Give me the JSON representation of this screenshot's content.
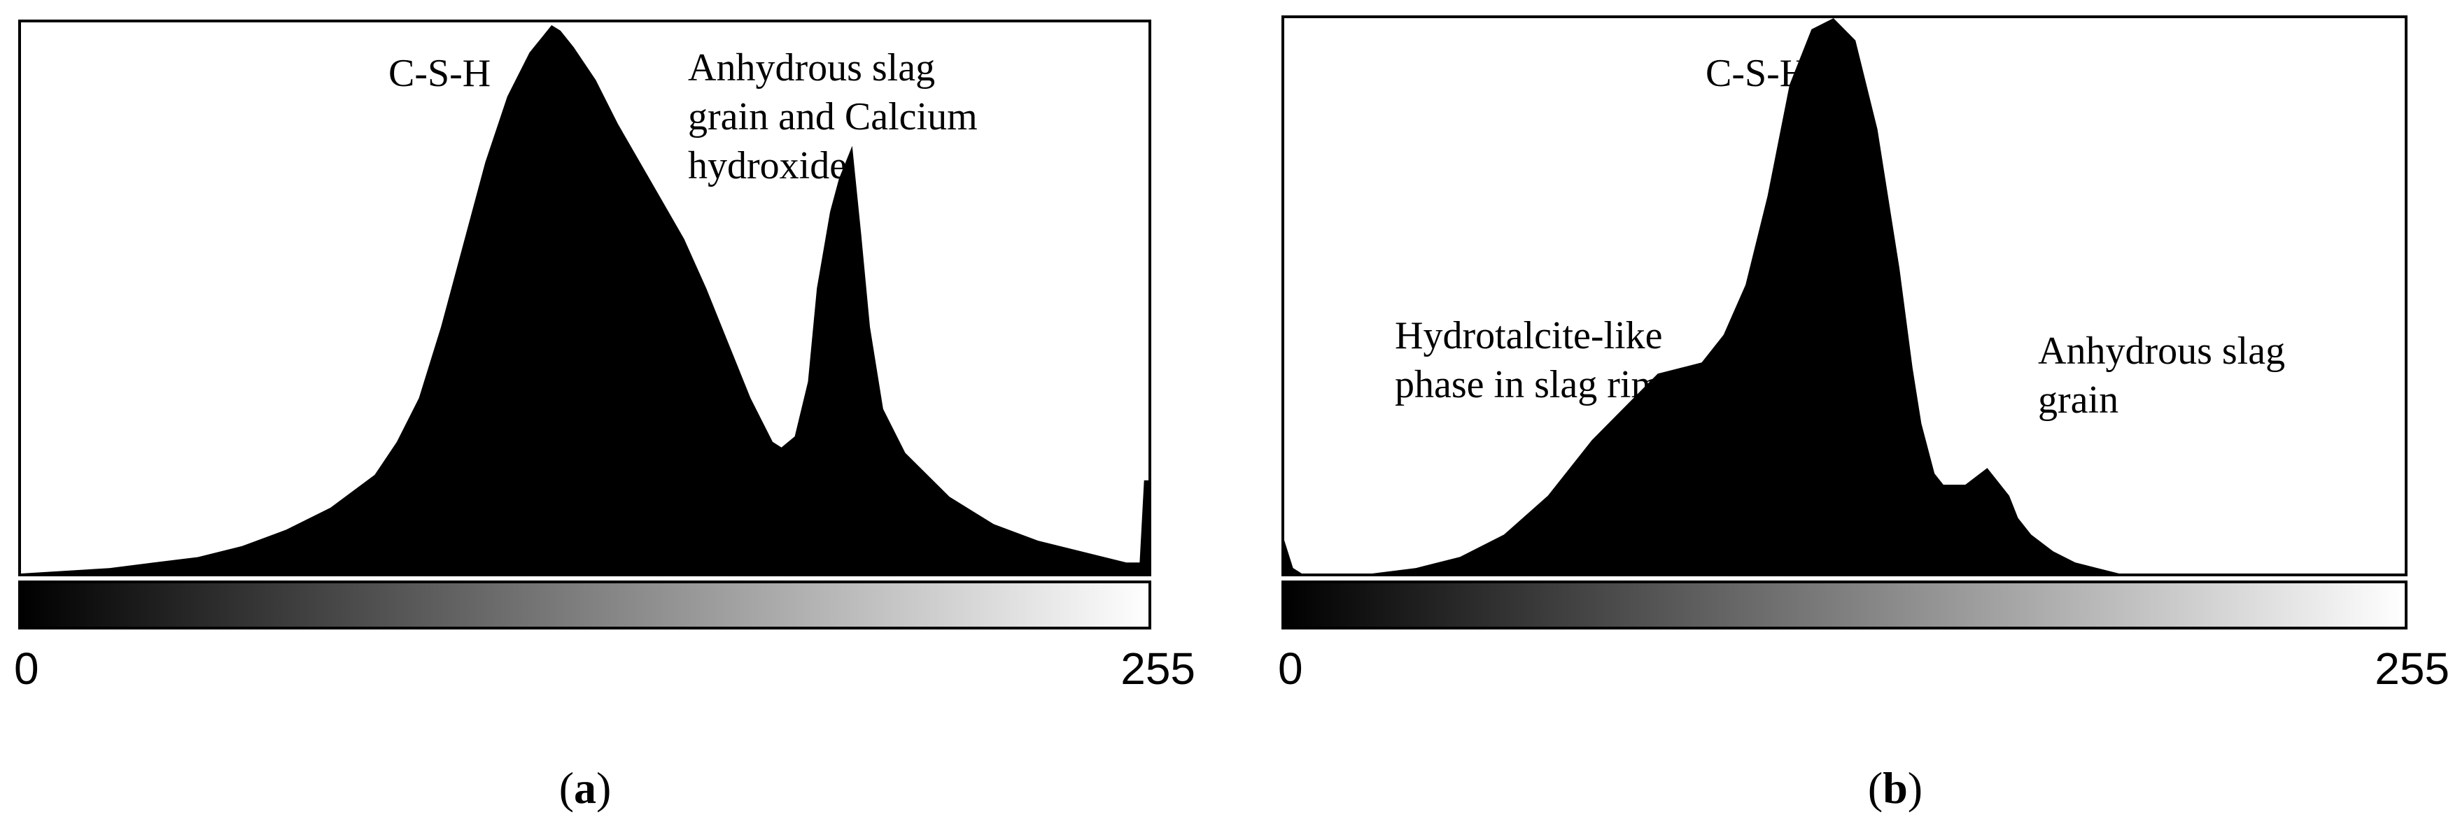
{
  "chart_data": [
    {
      "type": "area",
      "panel_label": "a",
      "xlim": [
        0,
        255
      ],
      "ylim": [
        0,
        100
      ],
      "x_tick_labels": [
        "0",
        "255"
      ],
      "grayscale_bar": true,
      "annotations": [
        "C-S-H",
        "Anhydrous slag grain and Calcium hydroxide"
      ],
      "annotation_lines": [
        [
          "C-S-H"
        ],
        [
          "Anhydrous slag",
          "grain and Calcium",
          "hydroxide"
        ]
      ],
      "x": [
        0,
        10,
        20,
        30,
        40,
        50,
        60,
        70,
        80,
        85,
        90,
        95,
        100,
        105,
        110,
        115,
        118,
        120,
        122,
        125,
        130,
        135,
        140,
        145,
        150,
        155,
        160,
        165,
        170,
        172,
        175,
        178,
        180,
        183,
        185,
        188,
        190,
        192,
        195,
        200,
        205,
        210,
        220,
        230,
        240,
        250,
        253,
        254,
        255
      ],
      "y": [
        0,
        0.5,
        1,
        2,
        3,
        5,
        8,
        12,
        18,
        24,
        32,
        45,
        60,
        75,
        87,
        95,
        98,
        100,
        99,
        96,
        90,
        82,
        75,
        68,
        61,
        52,
        42,
        32,
        24,
        23,
        25,
        35,
        52,
        66,
        72,
        78,
        62,
        45,
        30,
        22,
        18,
        14,
        9,
        6,
        4,
        2,
        2,
        17,
        17
      ]
    },
    {
      "type": "area",
      "panel_label": "b",
      "xlim": [
        0,
        255
      ],
      "ylim": [
        0,
        100
      ],
      "x_tick_labels": [
        "0",
        "255"
      ],
      "grayscale_bar": true,
      "annotations": [
        "C-S-H",
        "Hydrotalcite-like phase in slag rim",
        "Anhydrous slag grain"
      ],
      "annotation_lines": [
        [
          "C-S-H"
        ],
        [
          "Hydrotalcite-like",
          "phase in slag rim"
        ],
        [
          "Anhydrous slag",
          "grain"
        ]
      ],
      "x": [
        0,
        2,
        4,
        10,
        20,
        30,
        40,
        50,
        60,
        70,
        80,
        85,
        90,
        95,
        100,
        105,
        110,
        115,
        120,
        125,
        130,
        135,
        140,
        143,
        145,
        148,
        150,
        155,
        160,
        162,
        165,
        167,
        170,
        175,
        180,
        185,
        190,
        200,
        210,
        220,
        230,
        240,
        250,
        255
      ],
      "y": [
        6,
        1,
        0,
        0,
        0,
        1,
        3,
        7,
        14,
        24,
        32,
        36,
        37,
        38,
        43,
        52,
        68,
        88,
        98,
        100,
        96,
        80,
        55,
        37,
        27,
        18,
        16,
        16,
        19,
        17,
        14,
        10,
        7,
        4,
        2,
        1,
        0,
        0,
        0,
        0,
        0,
        0,
        0,
        0
      ]
    }
  ],
  "colors": {
    "fill": "#000000",
    "frame": "#000000",
    "background": "#ffffff",
    "gradient_start": "#000000",
    "gradient_end": "#ffffff"
  }
}
